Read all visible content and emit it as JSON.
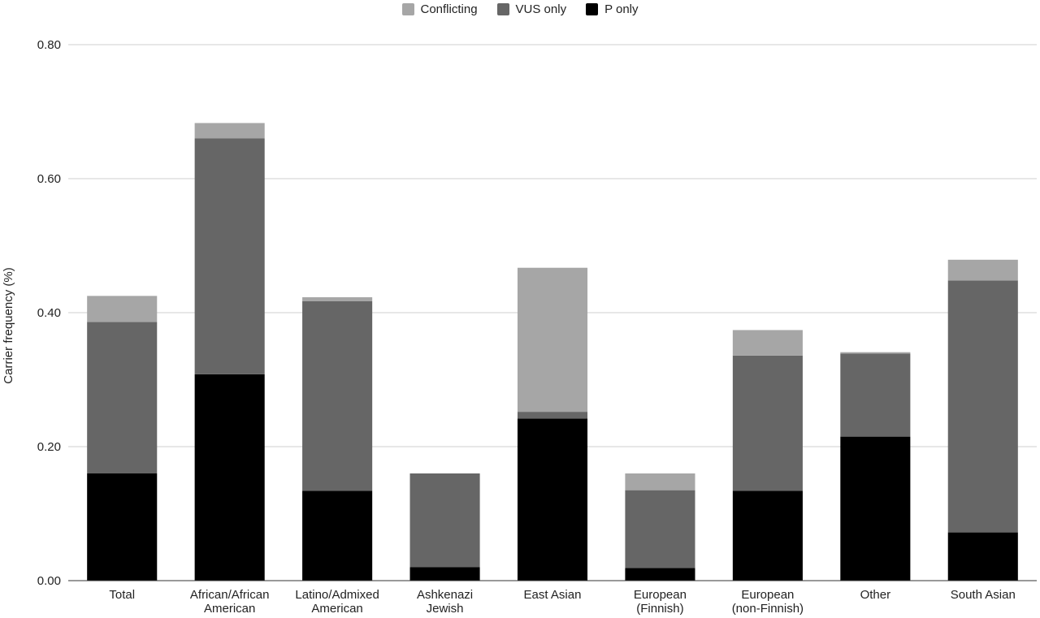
{
  "chart_data": {
    "type": "bar",
    "stacked": true,
    "title": "",
    "xlabel": "",
    "ylabel": "Carrier frequency (%)",
    "ylim": [
      0,
      0.8
    ],
    "yticks": [
      "0.00",
      "0.20",
      "0.40",
      "0.60",
      "0.80"
    ],
    "grid": true,
    "legend_position": "top",
    "categories": [
      [
        "Total"
      ],
      [
        "African/African",
        "American"
      ],
      [
        "Latino/Admixed",
        "American"
      ],
      [
        "Ashkenazi",
        "Jewish"
      ],
      [
        "East Asian"
      ],
      [
        "European",
        "(Finnish)"
      ],
      [
        "European",
        "(non-Finnish)"
      ],
      [
        "Other"
      ],
      [
        "South Asian"
      ]
    ],
    "series": [
      {
        "name": "P only",
        "color": "#000000",
        "values": [
          0.16,
          0.308,
          0.134,
          0.02,
          0.242,
          0.019,
          0.134,
          0.215,
          0.072
        ]
      },
      {
        "name": "VUS only",
        "color": "#666666",
        "values": [
          0.226,
          0.352,
          0.283,
          0.14,
          0.01,
          0.116,
          0.202,
          0.124,
          0.376
        ]
      },
      {
        "name": "Conflicting",
        "color": "#a6a6a6",
        "values": [
          0.039,
          0.023,
          0.006,
          0.0,
          0.215,
          0.025,
          0.038,
          0.002,
          0.031
        ]
      }
    ],
    "legend_order": [
      "Conflicting",
      "VUS only",
      "P only"
    ]
  }
}
